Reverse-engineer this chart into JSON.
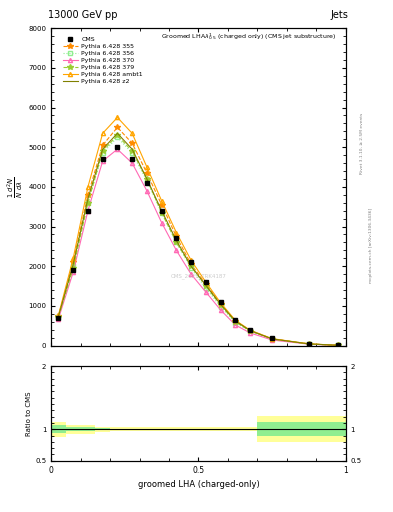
{
  "title_top": "13000 GeV pp",
  "title_right": "Jets",
  "plot_title": "Groomed LHA$\\lambda^{1}_{0.5}$ (charged only) (CMS jet substructure)",
  "watermark": "CMS_2021_TRK4187",
  "right_label_top": "Rivet 3.1.10, ≥ 2.5M events",
  "right_label_bottom": "mcplots.cern.ch [arXiv:1306.3436]",
  "xlabel": "groomed LHA (charged-only)",
  "ylabel": "$\\frac{1}{N}\\frac{d^{2}N}{d\\lambda}$",
  "ratio_ylabel": "Ratio to CMS",
  "xlim": [
    0,
    1
  ],
  "ylim": [
    0,
    8000
  ],
  "ratio_ylim": [
    0.5,
    2.0
  ],
  "yticks": [
    0,
    1000,
    2000,
    3000,
    4000,
    5000,
    6000,
    7000,
    8000
  ],
  "ytick_labels": [
    "0",
    "1000",
    "2000",
    "3000",
    "4000",
    "5000",
    "6000",
    "7000",
    "8000"
  ],
  "cms_x": [
    0.025,
    0.075,
    0.125,
    0.175,
    0.225,
    0.275,
    0.325,
    0.375,
    0.425,
    0.475,
    0.525,
    0.575,
    0.625,
    0.675,
    0.75,
    0.875,
    0.975
  ],
  "cms_y": [
    700,
    1900,
    3400,
    4700,
    5000,
    4700,
    4100,
    3400,
    2700,
    2100,
    1600,
    1100,
    650,
    400,
    180,
    45,
    8
  ],
  "py355_x": [
    0.025,
    0.075,
    0.125,
    0.175,
    0.225,
    0.275,
    0.325,
    0.375,
    0.425,
    0.475,
    0.525,
    0.575,
    0.625,
    0.675,
    0.75,
    0.875,
    0.975
  ],
  "py355_y": [
    750,
    2100,
    3800,
    5050,
    5500,
    5100,
    4350,
    3550,
    2750,
    2050,
    1550,
    1050,
    620,
    380,
    170,
    42,
    7
  ],
  "py356_x": [
    0.025,
    0.075,
    0.125,
    0.175,
    0.225,
    0.275,
    0.325,
    0.375,
    0.425,
    0.475,
    0.525,
    0.575,
    0.625,
    0.675,
    0.75,
    0.875,
    0.975
  ],
  "py356_y": [
    720,
    2000,
    3600,
    4850,
    5250,
    4850,
    4150,
    3350,
    2600,
    1950,
    1450,
    980,
    580,
    360,
    160,
    40,
    6.5
  ],
  "py370_x": [
    0.025,
    0.075,
    0.125,
    0.175,
    0.225,
    0.275,
    0.325,
    0.375,
    0.425,
    0.475,
    0.525,
    0.575,
    0.625,
    0.675,
    0.75,
    0.875,
    0.975
  ],
  "py370_y": [
    680,
    1850,
    3400,
    4650,
    4950,
    4600,
    3900,
    3100,
    2400,
    1800,
    1350,
    900,
    520,
    320,
    140,
    36,
    5.5
  ],
  "py379_x": [
    0.025,
    0.075,
    0.125,
    0.175,
    0.225,
    0.275,
    0.325,
    0.375,
    0.425,
    0.475,
    0.525,
    0.575,
    0.625,
    0.675,
    0.75,
    0.875,
    0.975
  ],
  "py379_y": [
    730,
    1950,
    3600,
    4900,
    5300,
    4900,
    4200,
    3350,
    2600,
    2000,
    1500,
    1020,
    600,
    370,
    165,
    41,
    6.8
  ],
  "pyambt1_x": [
    0.025,
    0.075,
    0.125,
    0.175,
    0.225,
    0.275,
    0.325,
    0.375,
    0.425,
    0.475,
    0.525,
    0.575,
    0.625,
    0.675,
    0.75,
    0.875,
    0.975
  ],
  "pyambt1_y": [
    770,
    2200,
    4000,
    5350,
    5750,
    5350,
    4500,
    3650,
    2850,
    2150,
    1600,
    1080,
    640,
    390,
    175,
    44,
    7.5
  ],
  "pyz2_x": [
    0.025,
    0.075,
    0.125,
    0.175,
    0.225,
    0.275,
    0.325,
    0.375,
    0.425,
    0.475,
    0.525,
    0.575,
    0.625,
    0.675,
    0.75,
    0.875,
    0.975
  ],
  "pyz2_y": [
    740,
    2050,
    3700,
    4950,
    5350,
    4950,
    4200,
    3400,
    2650,
    2000,
    1520,
    1040,
    620,
    380,
    168,
    42,
    7.2
  ],
  "ratio_x_edges": [
    0.0,
    0.05,
    0.1,
    0.15,
    0.2,
    0.25,
    0.3,
    0.35,
    0.4,
    0.45,
    0.5,
    0.55,
    0.6,
    0.65,
    0.7,
    1.0
  ],
  "ratio_green_lo": [
    0.94,
    0.97,
    0.97,
    0.98,
    0.99,
    0.99,
    0.99,
    0.99,
    0.99,
    0.99,
    0.99,
    0.99,
    0.99,
    0.99,
    0.89,
    0.89
  ],
  "ratio_green_hi": [
    1.06,
    1.03,
    1.03,
    1.02,
    1.01,
    1.01,
    1.01,
    1.01,
    1.01,
    1.01,
    1.01,
    1.01,
    1.01,
    1.01,
    1.11,
    1.11
  ],
  "ratio_yellow_lo": [
    0.88,
    0.93,
    0.93,
    0.96,
    0.97,
    0.97,
    0.97,
    0.97,
    0.97,
    0.97,
    0.97,
    0.97,
    0.97,
    0.97,
    0.79,
    0.79
  ],
  "ratio_yellow_hi": [
    1.12,
    1.07,
    1.07,
    1.04,
    1.03,
    1.03,
    1.03,
    1.03,
    1.03,
    1.03,
    1.03,
    1.03,
    1.03,
    1.03,
    1.21,
    1.21
  ],
  "color_355": "#FF8C00",
  "color_356": "#90EE90",
  "color_370": "#FF69B4",
  "color_379": "#9ACD32",
  "color_ambt1": "#FFA500",
  "color_z2": "#808000",
  "color_green_band": "#90EE90",
  "color_yellow_band": "#FFFF99",
  "bg_color": "#ffffff"
}
